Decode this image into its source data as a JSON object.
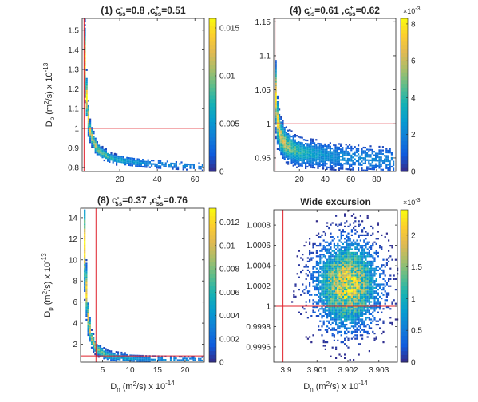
{
  "chart_data": [
    {
      "type": "heatmap",
      "panel_title": {
        "label": "(1) c",
        "minus_sub": "ss",
        "minus_sup": "-",
        "eq1": "=0.8 ,c",
        "plus_sub": "ss",
        "plus_sup": "+",
        "eq2": "=0.51"
      },
      "ylabel": {
        "main": "D",
        "sub": "p",
        "unit": " (m",
        "sup2": "2",
        "rest": "/s) x 10",
        "exp": "-13"
      },
      "xlabel": null,
      "xlim": [
        0,
        65
      ],
      "ylim": [
        0.78,
        1.56
      ],
      "xticks": [
        "20",
        "40",
        "60"
      ],
      "xtick_values": [
        20,
        40,
        60
      ],
      "yticks": [
        "0.8",
        "0.9",
        "1",
        "1.1",
        "1.2",
        "1.3",
        "1.4",
        "1.5"
      ],
      "ytick_values": [
        0.8,
        0.9,
        1.0,
        1.1,
        1.2,
        1.3,
        1.4,
        1.5
      ],
      "colorbar": {
        "ticks": [
          "0",
          "0.005",
          "0.01",
          "0.015"
        ],
        "tick_values": [
          0,
          0.005,
          0.01,
          0.015
        ],
        "max": 0.016,
        "multiplier": null
      },
      "reference_lines": {
        "x": 1.0,
        "y": 1.0,
        "color": "#e0202a"
      },
      "density": {
        "model": "hyperbola",
        "x_range": [
          1.0,
          64
        ],
        "y_at": [
          [
            1.0,
            1.5
          ],
          [
            2,
            1.22
          ],
          [
            4,
            1.0
          ],
          [
            8,
            0.9
          ],
          [
            16,
            0.85
          ],
          [
            30,
            0.83
          ],
          [
            64,
            0.81
          ]
        ],
        "spread": 0.014,
        "peak": 0.015
      }
    },
    {
      "type": "heatmap",
      "panel_title": {
        "label": "(4) c",
        "minus_sub": "ss",
        "minus_sup": "-",
        "eq1": "=0.61 ,c",
        "plus_sub": "ss",
        "plus_sup": "+",
        "eq2": "=0.62"
      },
      "ylabel": null,
      "xlabel": null,
      "xlim": [
        0,
        95
      ],
      "ylim": [
        0.93,
        1.155
      ],
      "xticks": [
        "20",
        "40",
        "60",
        "80"
      ],
      "xtick_values": [
        20,
        40,
        60,
        80
      ],
      "yticks": [
        "0.95",
        "1",
        "1.05",
        "1.1",
        "1.15"
      ],
      "ytick_values": [
        0.95,
        1.0,
        1.05,
        1.1,
        1.15
      ],
      "colorbar": {
        "ticks": [
          "0",
          "2",
          "4",
          "6",
          "8"
        ],
        "tick_values": [
          0,
          2,
          4,
          6,
          8
        ],
        "max": 8.3,
        "multiplier": "×10",
        "multiplier_exp": "-3"
      },
      "reference_lines": {
        "x": 1.0,
        "y": 1.0,
        "color": "#e0202a"
      },
      "density": {
        "model": "hyperbola",
        "x_range": [
          1.0,
          93
        ],
        "y_at": [
          [
            1.0,
            1.1
          ],
          [
            2,
            1.02
          ],
          [
            5,
            0.985
          ],
          [
            10,
            0.97
          ],
          [
            20,
            0.96
          ],
          [
            40,
            0.955
          ],
          [
            93,
            0.948
          ]
        ],
        "spread": 0.012,
        "peak": 8.2
      }
    },
    {
      "type": "heatmap",
      "panel_title": {
        "label": "(8) c",
        "minus_sub": "ss",
        "minus_sup": "-",
        "eq1": "=0.37 ,c",
        "plus_sub": "ss",
        "plus_sup": "+",
        "eq2": "=0.76"
      },
      "ylabel": {
        "main": "D",
        "sub": "p",
        "unit": " (m",
        "sup2": "2",
        "rest": "/s) x 10",
        "exp": "-13"
      },
      "xlabel": {
        "main": "D",
        "sub": "n",
        "unit": " (m",
        "sup2": "2",
        "rest": "/s) x 10",
        "exp": "-14"
      },
      "xlim": [
        1,
        23.5
      ],
      "ylim": [
        0.3,
        14.9
      ],
      "xticks": [
        "5",
        "10",
        "15",
        "20"
      ],
      "xtick_values": [
        5,
        10,
        15,
        20
      ],
      "yticks": [
        "2",
        "4",
        "6",
        "8",
        "10",
        "12",
        "14"
      ],
      "ytick_values": [
        2,
        4,
        6,
        8,
        10,
        12,
        14
      ],
      "colorbar": {
        "ticks": [
          "0",
          "0.002",
          "0.004",
          "0.006",
          "0.008",
          "0.01",
          "0.012"
        ],
        "tick_values": [
          0,
          0.002,
          0.004,
          0.006,
          0.008,
          0.01,
          0.012
        ],
        "max": 0.0132,
        "multiplier": null
      },
      "reference_lines": {
        "x": 3.8,
        "y": 0.9,
        "color": "#e0202a"
      },
      "density": {
        "model": "hyperbola",
        "x_range": [
          1.6,
          23
        ],
        "y_at": [
          [
            1.6,
            14.5
          ],
          [
            1.9,
            9
          ],
          [
            2.3,
            5
          ],
          [
            3,
            2.6
          ],
          [
            4,
            1.6
          ],
          [
            6,
            1.0
          ],
          [
            10,
            0.75
          ],
          [
            23,
            0.6
          ]
        ],
        "spread": 0.25,
        "peak": 0.012
      }
    },
    {
      "type": "heatmap",
      "panel_title": {
        "text": "Wide excursion"
      },
      "ylabel": null,
      "xlabel": {
        "main": "D",
        "sub": "n",
        "unit": " (m",
        "sup2": "2",
        "rest": "/s) x 10",
        "exp": "-14"
      },
      "xlim": [
        3.8996,
        3.9036
      ],
      "ylim": [
        0.99945,
        1.00095
      ],
      "xticks": [
        "3.9",
        "3.901",
        "3.902",
        "3.903"
      ],
      "xtick_values": [
        3.9,
        3.901,
        3.902,
        3.903
      ],
      "yticks": [
        "0.9996",
        "0.9998",
        "1",
        "1.0002",
        "1.0004",
        "1.0006",
        "1.0008"
      ],
      "ytick_values": [
        0.9996,
        0.9998,
        1.0,
        1.0002,
        1.0004,
        1.0006,
        1.0008
      ],
      "colorbar": {
        "ticks": [
          "0",
          "0.5",
          "1",
          "1.5",
          "2"
        ],
        "tick_values": [
          0,
          0.5,
          1,
          1.5,
          2
        ],
        "max": 2.4,
        "multiplier": "×10",
        "multiplier_exp": "-3"
      },
      "reference_lines": {
        "x": 3.8999,
        "y": 1.0,
        "color": "#e0202a"
      },
      "density": {
        "model": "gaussian",
        "center": [
          3.90195,
          1.00022
        ],
        "sd": [
          0.00062,
          0.00025
        ],
        "peak": 2.3
      }
    }
  ]
}
